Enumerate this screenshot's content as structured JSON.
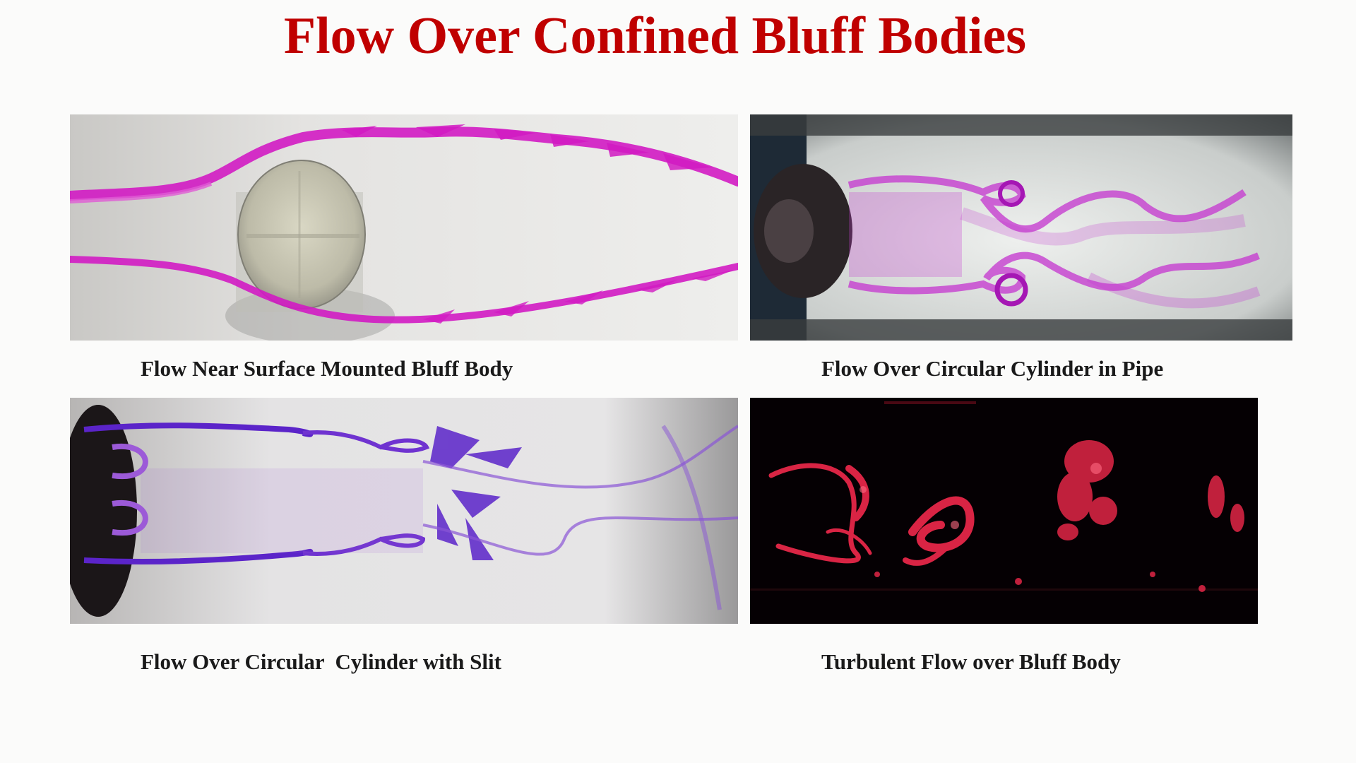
{
  "slide": {
    "title": "Flow Over Confined Bluff Bodies",
    "title_color": "#c00000"
  },
  "panels": [
    {
      "caption": "Flow Near Surface Mounted Bluff Body",
      "dye_color": "#d21bc3",
      "background": "#e9e8e6"
    },
    {
      "caption": "Flow Over Circular Cylinder in Pipe",
      "dye_color": "#c53ed0",
      "background": "#dfe2e0"
    },
    {
      "caption": "Flow Over Circular  Cylinder with Slit",
      "dye_color": "#7a3fd0",
      "background": "#e3e2e4"
    },
    {
      "caption": "Turbulent Flow over Bluff Body",
      "dye_color": "#ff2b50",
      "background": "#050003"
    }
  ]
}
